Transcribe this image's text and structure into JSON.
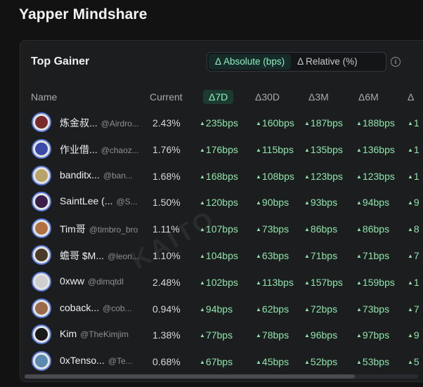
{
  "page_title": "Yapper Mindshare",
  "panel": {
    "title": "Top Gainer",
    "toggle": {
      "absolute": "Δ Absolute (bps)",
      "relative": "Δ Relative (%)"
    },
    "info_icon": "i"
  },
  "columns": {
    "name": "Name",
    "current": "Current",
    "d7": "Δ7D",
    "d30": "Δ30D",
    "d3m": "Δ3M",
    "d6m": "Δ6M",
    "d12m": "Δ"
  },
  "rows": [
    {
      "name": "炼金叔...",
      "handle": "@Airdro...",
      "current": "2.43%",
      "d7": "235bps",
      "d30": "160bps",
      "d3m": "187bps",
      "d6m": "188bps",
      "d12m": "1"
    },
    {
      "name": "作业借...",
      "handle": "@chaoz...",
      "current": "1.76%",
      "d7": "176bps",
      "d30": "115bps",
      "d3m": "135bps",
      "d6m": "136bps",
      "d12m": "1"
    },
    {
      "name": "banditx...",
      "handle": "@ban...",
      "current": "1.68%",
      "d7": "168bps",
      "d30": "108bps",
      "d3m": "123bps",
      "d6m": "123bps",
      "d12m": "1"
    },
    {
      "name": "SaintLee (...",
      "handle": "@S...",
      "current": "1.50%",
      "d7": "120bps",
      "d30": "90bps",
      "d3m": "93bps",
      "d6m": "94bps",
      "d12m": "9"
    },
    {
      "name": "Tim哥",
      "handle": "@timbro_bro",
      "current": "1.11%",
      "d7": "107bps",
      "d30": "73bps",
      "d3m": "86bps",
      "d6m": "86bps",
      "d12m": "8"
    },
    {
      "name": "蟾哥 $M...",
      "handle": "@leon...",
      "current": "1.10%",
      "d7": "104bps",
      "d30": "63bps",
      "d3m": "71bps",
      "d6m": "71bps",
      "d12m": "7"
    },
    {
      "name": "0xww",
      "handle": "@dimqtdl",
      "current": "2.48%",
      "d7": "102bps",
      "d30": "113bps",
      "d3m": "157bps",
      "d6m": "159bps",
      "d12m": "1"
    },
    {
      "name": "coback...",
      "handle": "@cob...",
      "current": "0.94%",
      "d7": "94bps",
      "d30": "62bps",
      "d3m": "72bps",
      "d6m": "73bps",
      "d12m": "7"
    },
    {
      "name": "Kim",
      "handle": "@TheKimjim",
      "current": "1.38%",
      "d7": "77bps",
      "d30": "78bps",
      "d3m": "96bps",
      "d6m": "97bps",
      "d12m": "9"
    },
    {
      "name": "0xTenso...",
      "handle": "@Te...",
      "current": "0.68%",
      "d7": "67bps",
      "d30": "45bps",
      "d3m": "52bps",
      "d6m": "53bps",
      "d12m": "5"
    }
  ],
  "watermark": "KAITO",
  "colors": {
    "accent": "#8ef0c4",
    "positive": "#8ee3ab",
    "avatar_ring": "#5b7cd9"
  }
}
